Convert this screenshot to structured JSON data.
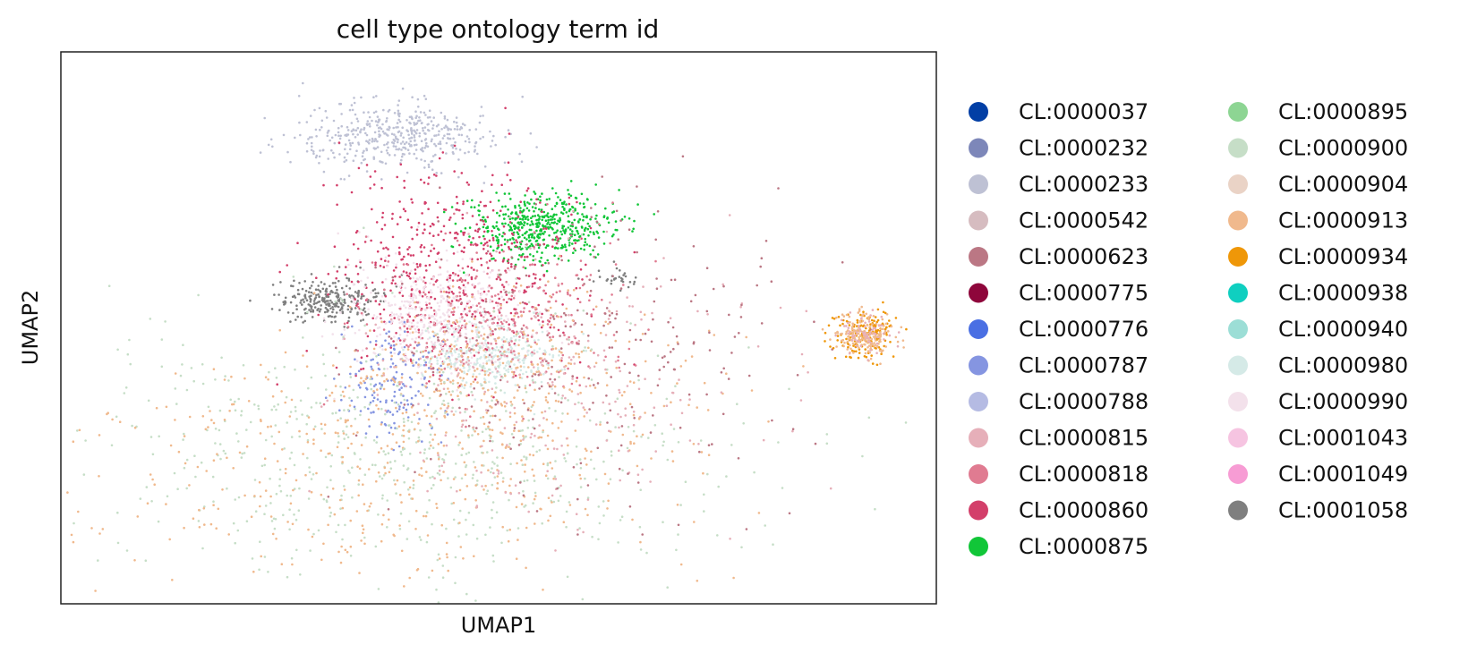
{
  "chart_data": {
    "type": "scatter",
    "title": "cell type ontology term id",
    "xlabel": "UMAP1",
    "ylabel": "UMAP2",
    "xlim": [
      0,
      100
    ],
    "ylim": [
      0,
      100
    ],
    "grid": false,
    "ticks": "none",
    "legend_position": "right",
    "legend_columns": 2,
    "series": [
      {
        "name": "CL:0000037",
        "color": "#023fa5"
      },
      {
        "name": "CL:0000232",
        "color": "#7d87b9"
      },
      {
        "name": "CL:0000233",
        "color": "#bec1d4"
      },
      {
        "name": "CL:0000542",
        "color": "#d6bcc0"
      },
      {
        "name": "CL:0000623",
        "color": "#bb7784"
      },
      {
        "name": "CL:0000775",
        "color": "#8e063b"
      },
      {
        "name": "CL:0000776",
        "color": "#4a6fe3"
      },
      {
        "name": "CL:0000787",
        "color": "#8595e1"
      },
      {
        "name": "CL:0000788",
        "color": "#b5bbe3"
      },
      {
        "name": "CL:0000815",
        "color": "#e6afb9"
      },
      {
        "name": "CL:0000818",
        "color": "#e07b91"
      },
      {
        "name": "CL:0000860",
        "color": "#d33f6a"
      },
      {
        "name": "CL:0000875",
        "color": "#11c638"
      },
      {
        "name": "CL:0000895",
        "color": "#8dd593"
      },
      {
        "name": "CL:0000900",
        "color": "#c6dec7"
      },
      {
        "name": "CL:0000904",
        "color": "#ead3c6"
      },
      {
        "name": "CL:0000913",
        "color": "#f0b98d"
      },
      {
        "name": "CL:0000934",
        "color": "#ef9708"
      },
      {
        "name": "CL:0000938",
        "color": "#0fcfc0"
      },
      {
        "name": "CL:0000940",
        "color": "#9cded6"
      },
      {
        "name": "CL:0000980",
        "color": "#d5eae7"
      },
      {
        "name": "CL:0000990",
        "color": "#f3e1eb"
      },
      {
        "name": "CL:0001043",
        "color": "#f6c4e1"
      },
      {
        "name": "CL:0001049",
        "color": "#f79cd4"
      },
      {
        "name": "CL:0001058",
        "color": "#7f7f7f"
      }
    ],
    "clusters": [
      {
        "series": "CL:0000233",
        "cx": 38,
        "cy": 85,
        "sx": 6,
        "sy": 3,
        "n": 450
      },
      {
        "series": "CL:0000875",
        "cx": 55,
        "cy": 68,
        "sx": 4,
        "sy": 3,
        "n": 500
      },
      {
        "series": "CL:0001058",
        "cx": 31,
        "cy": 55,
        "sx": 3,
        "sy": 2,
        "n": 260
      },
      {
        "series": "CL:0001058",
        "cx": 64,
        "cy": 59,
        "sx": 1.5,
        "sy": 1,
        "n": 30
      },
      {
        "series": "CL:0000860",
        "cx": 45,
        "cy": 60,
        "sx": 7,
        "sy": 9,
        "n": 550
      },
      {
        "series": "CL:0000990",
        "cx": 43,
        "cy": 52,
        "sx": 5,
        "sy": 5,
        "n": 450
      },
      {
        "series": "CL:0000980",
        "cx": 49,
        "cy": 45,
        "sx": 4,
        "sy": 3,
        "n": 300
      },
      {
        "series": "CL:0000818",
        "cx": 50,
        "cy": 52,
        "sx": 8,
        "sy": 7,
        "n": 300
      },
      {
        "series": "CL:0000787",
        "cx": 38,
        "cy": 40,
        "sx": 3,
        "sy": 5,
        "n": 160
      },
      {
        "series": "CL:0000913",
        "cx": 50,
        "cy": 42,
        "sx": 9,
        "sy": 7,
        "n": 320
      },
      {
        "series": "CL:0000900",
        "cx": 40,
        "cy": 28,
        "sx": 18,
        "sy": 12,
        "n": 650
      },
      {
        "series": "CL:0000913",
        "cx": 38,
        "cy": 25,
        "sx": 17,
        "sy": 11,
        "n": 450
      },
      {
        "series": "CL:0000815",
        "cx": 55,
        "cy": 40,
        "sx": 12,
        "sy": 12,
        "n": 300
      },
      {
        "series": "CL:0000623",
        "cx": 60,
        "cy": 45,
        "sx": 12,
        "sy": 14,
        "n": 250
      },
      {
        "series": "CL:0000934",
        "cx": 92,
        "cy": 49,
        "sx": 1.8,
        "sy": 2.2,
        "n": 170
      },
      {
        "series": "CL:0000913",
        "cx": 92,
        "cy": 49,
        "sx": 1.8,
        "sy": 2.2,
        "n": 170
      },
      {
        "series": "CL:0000815",
        "cx": 92,
        "cy": 49,
        "sx": 1.5,
        "sy": 2,
        "n": 60
      }
    ]
  }
}
